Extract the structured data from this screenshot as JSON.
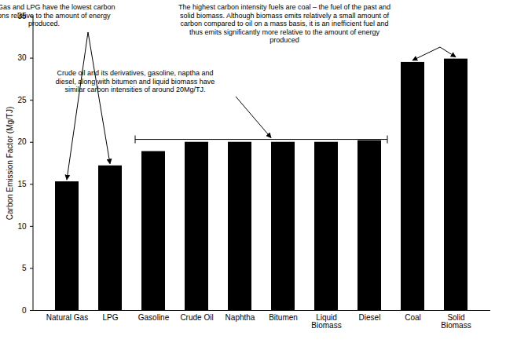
{
  "chart_data": {
    "type": "bar",
    "categories": [
      "Natural Gas",
      "LPG",
      "Gasoline",
      "Crude Oil",
      "Naphtha",
      "Bitumen",
      "Liquid Biomass",
      "Diesel",
      "Coal",
      "Solid Biomass"
    ],
    "values": [
      15.3,
      17.2,
      18.9,
      20.0,
      20.0,
      20.0,
      20.0,
      20.2,
      29.5,
      29.9
    ],
    "color": "#000000",
    "ylabel": "Carbon Emission Factor (Mg/TJ)",
    "ylim": [
      0,
      35
    ],
    "yticks": [
      0,
      5,
      10,
      15,
      20,
      25,
      30,
      35
    ],
    "grid": false,
    "annotations": [
      "Natural Gas and LPG have the lowest carbon emissions relative to the amount of energy produced.",
      "Crude oil and its derivatives, gasoline, naptha and diesel, along with bitumen and liquid biomass have similar carbon intensities of around 20Mg/TJ.",
      "The highest carbon intensity fuels are coal – the fuel of the past and solid biomass. Although biomass emits relatively a small amount of carbon compared to oil on a mass basis, it is an inefficient fuel and thus emits significantly more relative to the amount of energy produced"
    ]
  }
}
